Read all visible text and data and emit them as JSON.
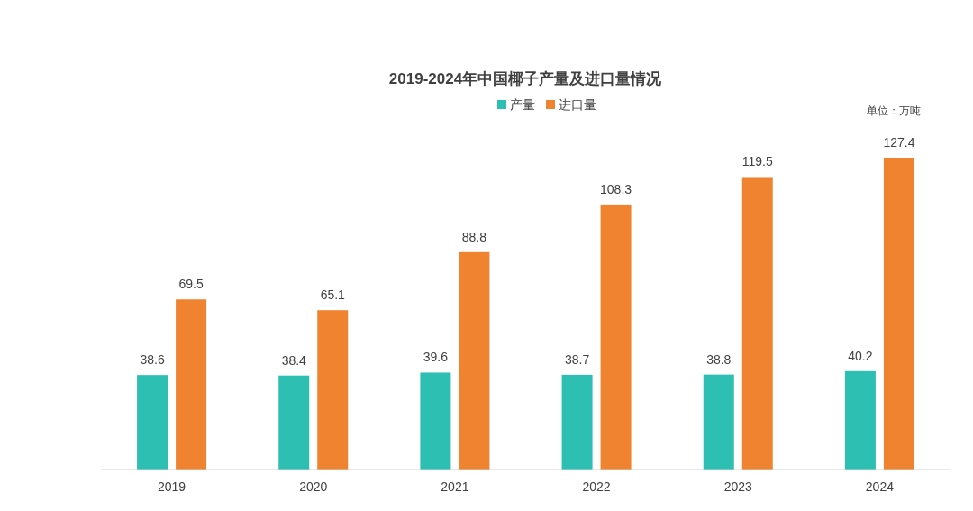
{
  "chart_data": {
    "type": "bar",
    "title": "2019-2024年中国椰子产量及进口量情况",
    "categories": [
      "2019",
      "2020",
      "2021",
      "2022",
      "2023",
      "2024"
    ],
    "series": [
      {
        "name": "产量",
        "color": "#2ebfb3",
        "values": [
          38.6,
          38.4,
          39.6,
          38.7,
          38.8,
          40.2
        ]
      },
      {
        "name": "进口量",
        "color": "#ef8330",
        "values": [
          69.5,
          65.1,
          88.8,
          108.3,
          119.5,
          127.4
        ]
      }
    ],
    "data_labels": true,
    "legend": "top",
    "annotations": [
      "单位：万吨"
    ]
  }
}
